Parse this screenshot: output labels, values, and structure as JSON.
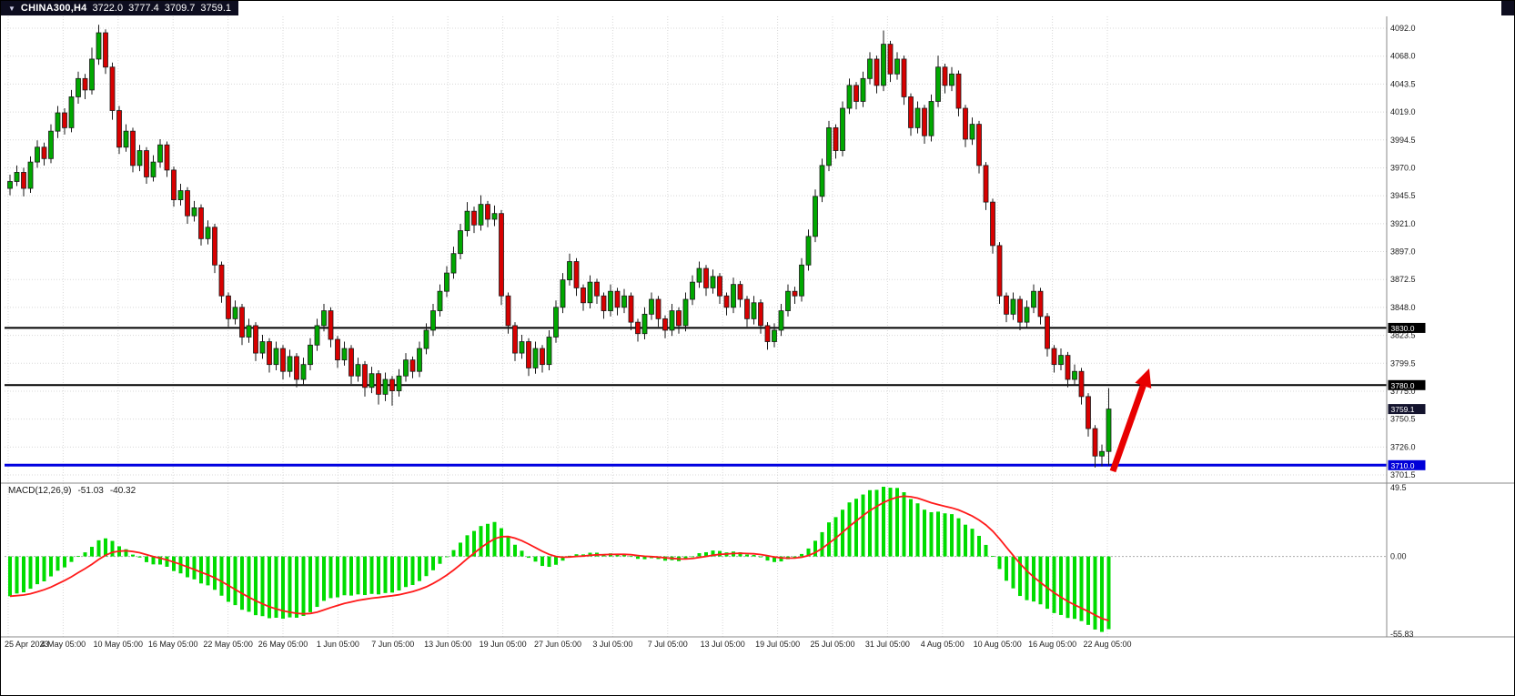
{
  "top_bar": {
    "symbol": "CHINA300,H4",
    "open": "3722.0",
    "high": "3777.4",
    "low": "3709.7",
    "close": "3759.1"
  },
  "macd_panel": {
    "label": "MACD(12,26,9)",
    "macd_value": "-51.03",
    "signal_value": "-40.32"
  },
  "chart_data": {
    "type": "candlestick",
    "title": "CHINA300,H4",
    "symbol": "CHINA300",
    "timeframe": "H4",
    "grid": true,
    "ylim": [
      3701.5,
      4092.0
    ],
    "last_ohlc": {
      "open": 3722.0,
      "high": 3777.4,
      "low": 3709.7,
      "close": 3759.1
    },
    "price_axis_ticks": [
      "4092.0",
      "4068.0",
      "4043.5",
      "4019.0",
      "3994.5",
      "3970.0",
      "3945.5",
      "3921.0",
      "3897.0",
      "3872.5",
      "3848.0",
      "3823.5",
      "3799.5",
      "3775.0",
      "3750.5",
      "3726.0",
      "3701.5"
    ],
    "price_axis_values": [
      4092.0,
      4068.0,
      4043.5,
      4019.0,
      3994.5,
      3970.0,
      3945.5,
      3921.0,
      3897.0,
      3872.5,
      3848.0,
      3823.5,
      3799.5,
      3775.0,
      3750.5,
      3726.0,
      3701.5
    ],
    "time_axis_ticks": [
      "25 Apr 2023",
      "4 May 05:00",
      "10 May 05:00",
      "16 May 05:00",
      "22 May 05:00",
      "26 May 05:00",
      "1 Jun 05:00",
      "7 Jun 05:00",
      "13 Jun 05:00",
      "19 Jun 05:00",
      "27 Jun 05:00",
      "3 Jul 05:00",
      "7 Jul 05:00",
      "13 Jul 05:00",
      "19 Jul 05:00",
      "25 Jul 05:00",
      "31 Jul 05:00",
      "4 Aug 05:00",
      "10 Aug 05:00",
      "16 Aug 05:00",
      "22 Aug 05:00"
    ],
    "horizontal_levels": [
      {
        "name": "resistance-upper",
        "price": 3830.0,
        "label": "3830.0",
        "line_color": "#000000",
        "badge_color": "#000000",
        "line_width": 2,
        "line": true
      },
      {
        "name": "resistance-lower",
        "price": 3780.0,
        "label": "3780.0",
        "line_color": "#000000",
        "badge_color": "#000000",
        "line_width": 2,
        "line": true
      },
      {
        "name": "current-price",
        "price": 3759.1,
        "label": "3759.1",
        "line_color": "#14142e",
        "badge_color": "#14142e",
        "line_width": 0,
        "line": false
      },
      {
        "name": "support-blue",
        "price": 3710.0,
        "label": "3710.0",
        "line_color": "#0000e0",
        "badge_color": "#0000d8",
        "line_width": 3,
        "line": true
      }
    ],
    "colors": {
      "bull": "#00a800",
      "bear": "#d80000",
      "outline": "#1a1a1a",
      "grid": "#d8d8d8",
      "separator": "#888888",
      "axis_text": "#1a1a1a",
      "background": "#ffffff"
    },
    "candles_ohlc": [
      [
        3952,
        3964,
        3946,
        3958
      ],
      [
        3958,
        3972,
        3954,
        3966
      ],
      [
        3966,
        3970,
        3945,
        3952
      ],
      [
        3952,
        3980,
        3948,
        3975
      ],
      [
        3975,
        3994,
        3970,
        3988
      ],
      [
        3988,
        3992,
        3972,
        3978
      ],
      [
        3978,
        4008,
        3974,
        4002
      ],
      [
        4002,
        4024,
        3996,
        4018
      ],
      [
        4018,
        4022,
        3999,
        4005
      ],
      [
        4005,
        4038,
        4001,
        4032
      ],
      [
        4032,
        4054,
        4026,
        4048
      ],
      [
        4048,
        4052,
        4030,
        4038
      ],
      [
        4038,
        4075,
        4034,
        4065
      ],
      [
        4065,
        4095,
        4060,
        4088
      ],
      [
        4088,
        4091,
        4052,
        4058
      ],
      [
        4058,
        4062,
        4012,
        4020
      ],
      [
        4020,
        4024,
        3982,
        3988
      ],
      [
        3988,
        4008,
        3984,
        4002
      ],
      [
        4002,
        4005,
        3966,
        3972
      ],
      [
        3972,
        3990,
        3967,
        3985
      ],
      [
        3985,
        3988,
        3956,
        3962
      ],
      [
        3962,
        3981,
        3958,
        3975
      ],
      [
        3975,
        3995,
        3970,
        3990
      ],
      [
        3990,
        3993,
        3962,
        3968
      ],
      [
        3968,
        3971,
        3936,
        3942
      ],
      [
        3942,
        3956,
        3937,
        3950
      ],
      [
        3950,
        3953,
        3921,
        3928
      ],
      [
        3928,
        3941,
        3923,
        3935
      ],
      [
        3935,
        3938,
        3902,
        3908
      ],
      [
        3908,
        3924,
        3903,
        3918
      ],
      [
        3918,
        3921,
        3878,
        3885
      ],
      [
        3885,
        3888,
        3852,
        3858
      ],
      [
        3858,
        3861,
        3831,
        3838
      ],
      [
        3838,
        3854,
        3833,
        3848
      ],
      [
        3848,
        3851,
        3815,
        3822
      ],
      [
        3822,
        3838,
        3817,
        3832
      ],
      [
        3832,
        3835,
        3801,
        3808
      ],
      [
        3808,
        3824,
        3803,
        3818
      ],
      [
        3818,
        3821,
        3791,
        3798
      ],
      [
        3798,
        3818,
        3793,
        3812
      ],
      [
        3812,
        3815,
        3785,
        3792
      ],
      [
        3792,
        3811,
        3787,
        3805
      ],
      [
        3805,
        3808,
        3778,
        3785
      ],
      [
        3785,
        3804,
        3780,
        3798
      ],
      [
        3798,
        3821,
        3793,
        3815
      ],
      [
        3815,
        3838,
        3810,
        3832
      ],
      [
        3832,
        3851,
        3827,
        3845
      ],
      [
        3845,
        3848,
        3813,
        3820
      ],
      [
        3820,
        3823,
        3795,
        3802
      ],
      [
        3802,
        3818,
        3797,
        3812
      ],
      [
        3812,
        3815,
        3781,
        3788
      ],
      [
        3788,
        3804,
        3783,
        3798
      ],
      [
        3798,
        3801,
        3770,
        3778
      ],
      [
        3778,
        3796,
        3773,
        3790
      ],
      [
        3790,
        3793,
        3763,
        3772
      ],
      [
        3772,
        3791,
        3766,
        3785
      ],
      [
        3785,
        3788,
        3762,
        3775
      ],
      [
        3775,
        3794,
        3770,
        3788
      ],
      [
        3788,
        3808,
        3783,
        3802
      ],
      [
        3802,
        3805,
        3786,
        3792
      ],
      [
        3792,
        3818,
        3787,
        3812
      ],
      [
        3812,
        3834,
        3807,
        3828
      ],
      [
        3828,
        3851,
        3823,
        3845
      ],
      [
        3845,
        3868,
        3840,
        3862
      ],
      [
        3862,
        3884,
        3857,
        3878
      ],
      [
        3878,
        3901,
        3873,
        3895
      ],
      [
        3895,
        3921,
        3890,
        3915
      ],
      [
        3915,
        3940,
        3910,
        3932
      ],
      [
        3932,
        3936,
        3913,
        3920
      ],
      [
        3920,
        3946,
        3915,
        3938
      ],
      [
        3938,
        3941,
        3918,
        3925
      ],
      [
        3925,
        3937,
        3919,
        3930
      ],
      [
        3930,
        3933,
        3850,
        3858
      ],
      [
        3858,
        3861,
        3825,
        3832
      ],
      [
        3832,
        3835,
        3801,
        3808
      ],
      [
        3808,
        3824,
        3803,
        3818
      ],
      [
        3818,
        3821,
        3788,
        3795
      ],
      [
        3795,
        3818,
        3790,
        3812
      ],
      [
        3812,
        3815,
        3791,
        3798
      ],
      [
        3798,
        3828,
        3793,
        3822
      ],
      [
        3822,
        3854,
        3817,
        3848
      ],
      [
        3848,
        3878,
        3843,
        3872
      ],
      [
        3872,
        3895,
        3867,
        3888
      ],
      [
        3888,
        3891,
        3858,
        3865
      ],
      [
        3865,
        3868,
        3845,
        3852
      ],
      [
        3852,
        3876,
        3847,
        3870
      ],
      [
        3870,
        3873,
        3851,
        3858
      ],
      [
        3858,
        3861,
        3838,
        3845
      ],
      [
        3845,
        3868,
        3840,
        3862
      ],
      [
        3862,
        3865,
        3841,
        3848
      ],
      [
        3848,
        3864,
        3843,
        3858
      ],
      [
        3858,
        3861,
        3828,
        3835
      ],
      [
        3835,
        3838,
        3818,
        3825
      ],
      [
        3825,
        3848,
        3820,
        3842
      ],
      [
        3842,
        3861,
        3837,
        3855
      ],
      [
        3855,
        3858,
        3831,
        3838
      ],
      [
        3838,
        3841,
        3821,
        3828
      ],
      [
        3828,
        3851,
        3823,
        3845
      ],
      [
        3845,
        3848,
        3825,
        3832
      ],
      [
        3832,
        3861,
        3827,
        3855
      ],
      [
        3855,
        3876,
        3850,
        3870
      ],
      [
        3870,
        3888,
        3865,
        3882
      ],
      [
        3882,
        3885,
        3858,
        3865
      ],
      [
        3865,
        3881,
        3860,
        3875
      ],
      [
        3875,
        3878,
        3851,
        3858
      ],
      [
        3858,
        3861,
        3841,
        3848
      ],
      [
        3848,
        3874,
        3843,
        3868
      ],
      [
        3868,
        3871,
        3848,
        3855
      ],
      [
        3855,
        3858,
        3831,
        3838
      ],
      [
        3838,
        3858,
        3833,
        3852
      ],
      [
        3852,
        3855,
        3825,
        3832
      ],
      [
        3832,
        3835,
        3811,
        3818
      ],
      [
        3818,
        3834,
        3813,
        3828
      ],
      [
        3828,
        3851,
        3823,
        3845
      ],
      [
        3845,
        3868,
        3840,
        3862
      ],
      [
        3862,
        3866,
        3851,
        3858
      ],
      [
        3858,
        3891,
        3853,
        3885
      ],
      [
        3885,
        3916,
        3880,
        3910
      ],
      [
        3910,
        3951,
        3905,
        3945
      ],
      [
        3945,
        3978,
        3940,
        3972
      ],
      [
        3972,
        4011,
        3967,
        4005
      ],
      [
        4005,
        4008,
        3978,
        3985
      ],
      [
        3985,
        4028,
        3980,
        4022
      ],
      [
        4022,
        4048,
        4017,
        4042
      ],
      [
        4042,
        4045,
        4021,
        4028
      ],
      [
        4028,
        4054,
        4023,
        4048
      ],
      [
        4048,
        4071,
        4043,
        4065
      ],
      [
        4065,
        4068,
        4035,
        4042
      ],
      [
        4042,
        4090,
        4037,
        4078
      ],
      [
        4078,
        4081,
        4045,
        4052
      ],
      [
        4052,
        4071,
        4047,
        4065
      ],
      [
        4065,
        4068,
        4025,
        4032
      ],
      [
        4032,
        4035,
        3998,
        4005
      ],
      [
        4005,
        4028,
        4000,
        4022
      ],
      [
        4022,
        4025,
        3991,
        3998
      ],
      [
        3998,
        4034,
        3993,
        4028
      ],
      [
        4028,
        4068,
        4023,
        4058
      ],
      [
        4058,
        4061,
        4035,
        4042
      ],
      [
        4042,
        4058,
        4037,
        4052
      ],
      [
        4052,
        4055,
        4015,
        4022
      ],
      [
        4022,
        4025,
        3988,
        3995
      ],
      [
        3995,
        4014,
        3990,
        4008
      ],
      [
        4008,
        4011,
        3965,
        3972
      ],
      [
        3972,
        3975,
        3933,
        3940
      ],
      [
        3940,
        3943,
        3895,
        3902
      ],
      [
        3902,
        3905,
        3851,
        3858
      ],
      [
        3858,
        3861,
        3835,
        3842
      ],
      [
        3842,
        3861,
        3837,
        3855
      ],
      [
        3855,
        3858,
        3828,
        3835
      ],
      [
        3835,
        3854,
        3830,
        3848
      ],
      [
        3848,
        3868,
        3843,
        3862
      ],
      [
        3862,
        3865,
        3833,
        3840
      ],
      [
        3840,
        3843,
        3805,
        3812
      ],
      [
        3812,
        3815,
        3791,
        3798
      ],
      [
        3798,
        3812,
        3793,
        3806
      ],
      [
        3806,
        3809,
        3778,
        3785
      ],
      [
        3785,
        3798,
        3780,
        3792
      ],
      [
        3792,
        3795,
        3763,
        3770
      ],
      [
        3770,
        3773,
        3735,
        3742
      ],
      [
        3742,
        3745,
        3708,
        3718
      ],
      [
        3718,
        3728,
        3709,
        3722
      ],
      [
        3722,
        3777.4,
        3709.7,
        3759.1
      ]
    ],
    "indicator": {
      "name": "MACD",
      "params": [
        12,
        26,
        9
      ],
      "values": {
        "macd": -51.03,
        "signal": -40.32
      },
      "axis_labels": {
        "max": "49.5",
        "zero": "0.00",
        "min": "-55.83"
      },
      "ylim": [
        -55.83,
        49.5
      ],
      "histogram_color": "#00dc00",
      "signal_color": "#ff1a1a",
      "render_seed_offsets": {
        "ema12": 12,
        "ema26": 45
      }
    },
    "annotations": [
      {
        "type": "arrow",
        "name": "buy-signal-arrow",
        "color": "#e80000",
        "tail_x": 1222,
        "tail_y": 517,
        "tip_x": 1262,
        "tip_y": 404
      }
    ]
  }
}
